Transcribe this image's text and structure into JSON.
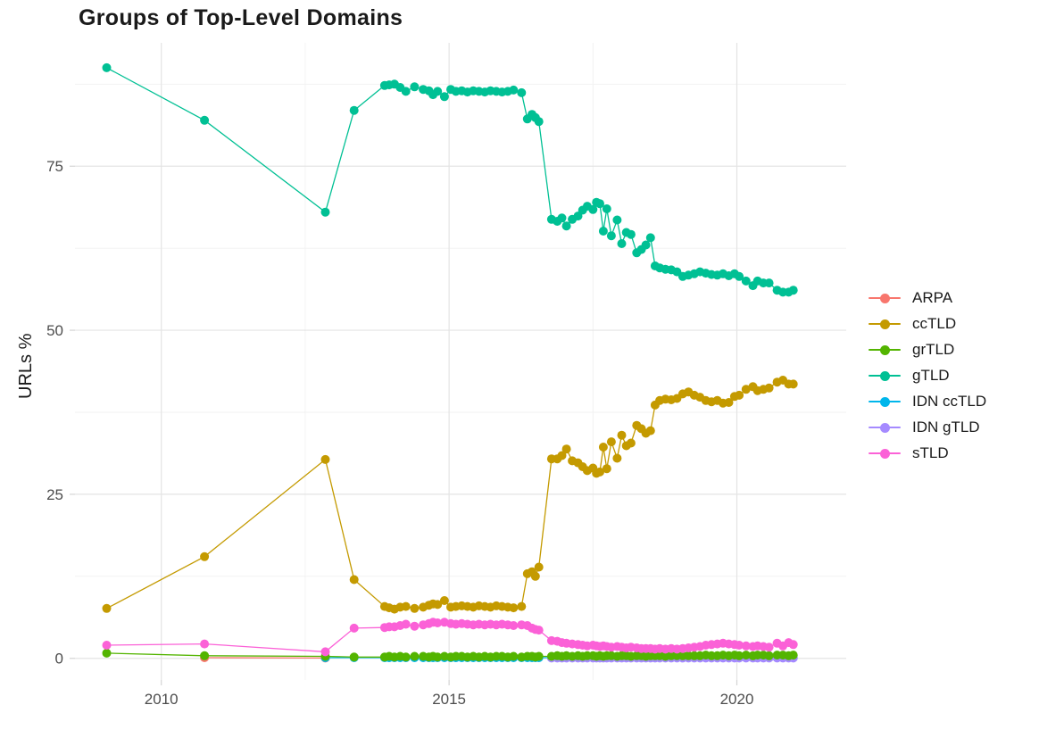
{
  "chart_data": {
    "type": "line",
    "title": "Groups of Top-Level Domains",
    "xlabel": "",
    "ylabel": "URLs %",
    "grid": true,
    "legend_position": "right",
    "xlim": [
      2008.5,
      2021.9
    ],
    "ylim": [
      -3.3,
      93.8
    ],
    "x_ticks": [
      2010,
      2015,
      2020
    ],
    "x_tick_labels": [
      "2010",
      "2015",
      "2020"
    ],
    "x_minor_ticks": [
      2012.5,
      2017.5
    ],
    "y_ticks": [
      0,
      25,
      50,
      75
    ],
    "y_tick_labels": [
      "0",
      "25",
      "50",
      "75"
    ],
    "y_minor_ticks": [
      12.5,
      37.5,
      62.5,
      87.5
    ],
    "x": [
      2009.05,
      2010.75,
      2012.85,
      2013.35,
      2013.88,
      2013.96,
      2014.05,
      2014.15,
      2014.25,
      2014.4,
      2014.55,
      2014.65,
      2014.72,
      2014.8,
      2014.92,
      2015.03,
      2015.12,
      2015.22,
      2015.32,
      2015.42,
      2015.52,
      2015.62,
      2015.72,
      2015.82,
      2015.92,
      2016.02,
      2016.12,
      2016.26,
      2016.36,
      2016.44,
      2016.5,
      2016.56,
      2016.78,
      2016.88,
      2016.96,
      2017.04,
      2017.14,
      2017.24,
      2017.32,
      2017.4,
      2017.5,
      2017.56,
      2017.62,
      2017.68,
      2017.74,
      2017.82,
      2017.92,
      2018,
      2018.08,
      2018.16,
      2018.26,
      2018.34,
      2018.42,
      2018.5,
      2018.58,
      2018.66,
      2018.76,
      2018.86,
      2018.96,
      2019.06,
      2019.16,
      2019.26,
      2019.36,
      2019.46,
      2019.56,
      2019.66,
      2019.76,
      2019.86,
      2019.96,
      2020.04,
      2020.16,
      2020.28,
      2020.36,
      2020.46,
      2020.56,
      2020.7,
      2020.8,
      2020.9,
      2020.98
    ],
    "series": [
      {
        "name": "ARPA",
        "color": "#F8766D",
        "start_index": 1,
        "values": [
          0.1,
          0.05
        ]
      },
      {
        "name": "ccTLD",
        "color": "#C49A00",
        "start_index": 0,
        "values": [
          7.6,
          15.5,
          30.3,
          12,
          7.9,
          7.7,
          7.5,
          7.8,
          7.9,
          7.6,
          7.8,
          8.1,
          8.3,
          8.2,
          8.8,
          7.8,
          7.9,
          8,
          7.9,
          7.8,
          8,
          7.9,
          7.8,
          8,
          7.9,
          7.8,
          7.7,
          7.9,
          12.9,
          13.2,
          12.5,
          13.9,
          30.4,
          30.4,
          30.9,
          31.9,
          30.1,
          29.8,
          29.2,
          28.6,
          29,
          28.2,
          28.4,
          32.2,
          28.9,
          33,
          30.5,
          34,
          32.4,
          32.8,
          35.5,
          35,
          34.3,
          34.7,
          38.6,
          39.3,
          39.5,
          39.4,
          39.6,
          40.3,
          40.6,
          40.1,
          39.8,
          39.3,
          39.1,
          39.3,
          38.9,
          39,
          39.9,
          40.1,
          41,
          41.4,
          40.8,
          41,
          41.2,
          42.1,
          42.4,
          41.8,
          41.8
        ]
      },
      {
        "name": "grTLD",
        "color": "#53B400",
        "start_index": 0,
        "values": [
          0.8,
          0.4,
          0.3,
          0.2,
          0.2,
          0.3,
          0.2,
          0.3,
          0.2,
          0.3,
          0.3,
          0.2,
          0.3,
          0.2,
          0.3,
          0.2,
          0.3,
          0.3,
          0.2,
          0.3,
          0.2,
          0.3,
          0.2,
          0.3,
          0.3,
          0.2,
          0.3,
          0.2,
          0.3,
          0.3,
          0.2,
          0.3,
          0.3,
          0.4,
          0.3,
          0.4,
          0.3,
          0.4,
          0.3,
          0.4,
          0.4,
          0.3,
          0.4,
          0.3,
          0.4,
          0.4,
          0.3,
          0.4,
          0.4,
          0.3,
          0.4,
          0.4,
          0.3,
          0.4,
          0.4,
          0.4,
          0.3,
          0.4,
          0.4,
          0.4,
          0.4,
          0.4,
          0.4,
          0.5,
          0.4,
          0.4,
          0.5,
          0.4,
          0.5,
          0.4,
          0.5,
          0.4,
          0.5,
          0.5,
          0.4,
          0.5,
          0.5,
          0.4,
          0.5
        ]
      },
      {
        "name": "gTLD",
        "color": "#00C094",
        "start_index": 0,
        "values": [
          90,
          82,
          68,
          83.5,
          87.3,
          87.4,
          87.5,
          87,
          86.4,
          87.1,
          86.7,
          86.5,
          85.9,
          86.4,
          85.6,
          86.7,
          86.4,
          86.5,
          86.3,
          86.5,
          86.4,
          86.3,
          86.5,
          86.4,
          86.3,
          86.4,
          86.6,
          86.2,
          82.2,
          82.9,
          82.4,
          81.8,
          66.9,
          66.6,
          67.1,
          65.9,
          66.9,
          67.4,
          68.3,
          68.9,
          68.4,
          69.5,
          69.3,
          65.1,
          68.5,
          64.4,
          66.8,
          63.2,
          64.9,
          64.6,
          61.8,
          62.3,
          63,
          64.1,
          59.8,
          59.5,
          59.3,
          59.2,
          58.9,
          58.2,
          58.4,
          58.6,
          58.9,
          58.7,
          58.5,
          58.4,
          58.6,
          58.3,
          58.6,
          58.2,
          57.5,
          56.8,
          57.5,
          57.2,
          57.2,
          56.1,
          55.8,
          55.8,
          56.1
        ]
      },
      {
        "name": "IDN ccTLD",
        "color": "#00B6EB",
        "start_index": 2,
        "values": [
          0.1,
          0.1,
          0.1,
          0.1,
          0.1,
          0.1,
          0.1,
          0.1,
          0.1,
          0.1,
          0.1,
          0.1,
          0.1,
          0.1,
          0.1,
          0.1,
          0.1,
          0.1,
          0.1,
          0.1,
          0.1,
          0.1,
          0.1,
          0.1,
          0.1,
          0.1,
          0.1,
          0.1,
          0.1,
          0.1,
          0.1,
          0.1,
          0.1,
          0.1,
          0.1,
          0.1,
          0.1,
          0.1,
          0.1,
          0.1,
          0.1,
          0.1,
          0.1,
          0.1,
          0.1,
          0.1,
          0.1,
          0.1,
          0.1,
          0.1,
          0.1,
          0.1,
          0.1,
          0.1,
          0.1,
          0.1,
          0.1,
          0.1,
          0.1,
          0.1,
          0.1,
          0.1,
          0.1,
          0.1,
          0.1,
          0.1,
          0.1,
          0.1,
          0.1,
          0.1,
          0.1,
          0.1,
          0.1,
          0.1,
          0.1,
          0.1,
          0.1
        ]
      },
      {
        "name": "IDN gTLD",
        "color": "#A58AFF",
        "start_index": 32,
        "values": [
          0.05,
          0.05,
          0.05,
          0.05,
          0.05,
          0.05,
          0.05,
          0.05,
          0.05,
          0.05,
          0.05,
          0.05,
          0.05,
          0.05,
          0.05,
          0.05,
          0.05,
          0.05,
          0.05,
          0.05,
          0.05,
          0.05,
          0.05,
          0.05,
          0.05,
          0.05,
          0.05,
          0.05,
          0.05,
          0.05,
          0.05,
          0.05,
          0.05,
          0.05,
          0.05,
          0.05,
          0.05,
          0.05,
          0.05,
          0.05,
          0.05,
          0.05,
          0.05,
          0.05,
          0.05,
          0.05,
          0.05
        ]
      },
      {
        "name": "sTLD",
        "color": "#FB61D7",
        "start_index": 0,
        "values": [
          2,
          2.2,
          1,
          4.6,
          4.7,
          4.8,
          4.8,
          5,
          5.2,
          4.9,
          5.1,
          5.3,
          5.5,
          5.4,
          5.5,
          5.3,
          5.2,
          5.3,
          5.2,
          5.1,
          5.2,
          5.1,
          5.2,
          5.1,
          5.2,
          5.1,
          5,
          5.1,
          5,
          4.6,
          4.4,
          4.3,
          2.7,
          2.6,
          2.4,
          2.3,
          2.2,
          2.1,
          2,
          1.9,
          2,
          1.9,
          1.8,
          1.9,
          1.8,
          1.7,
          1.8,
          1.7,
          1.6,
          1.7,
          1.6,
          1.5,
          1.5,
          1.5,
          1.4,
          1.5,
          1.4,
          1.5,
          1.4,
          1.5,
          1.6,
          1.7,
          1.8,
          2,
          2.1,
          2.2,
          2.3,
          2.2,
          2.1,
          2,
          1.9,
          1.8,
          1.9,
          1.8,
          1.7,
          2.3,
          1.9,
          2.4,
          2.1
        ]
      }
    ]
  }
}
